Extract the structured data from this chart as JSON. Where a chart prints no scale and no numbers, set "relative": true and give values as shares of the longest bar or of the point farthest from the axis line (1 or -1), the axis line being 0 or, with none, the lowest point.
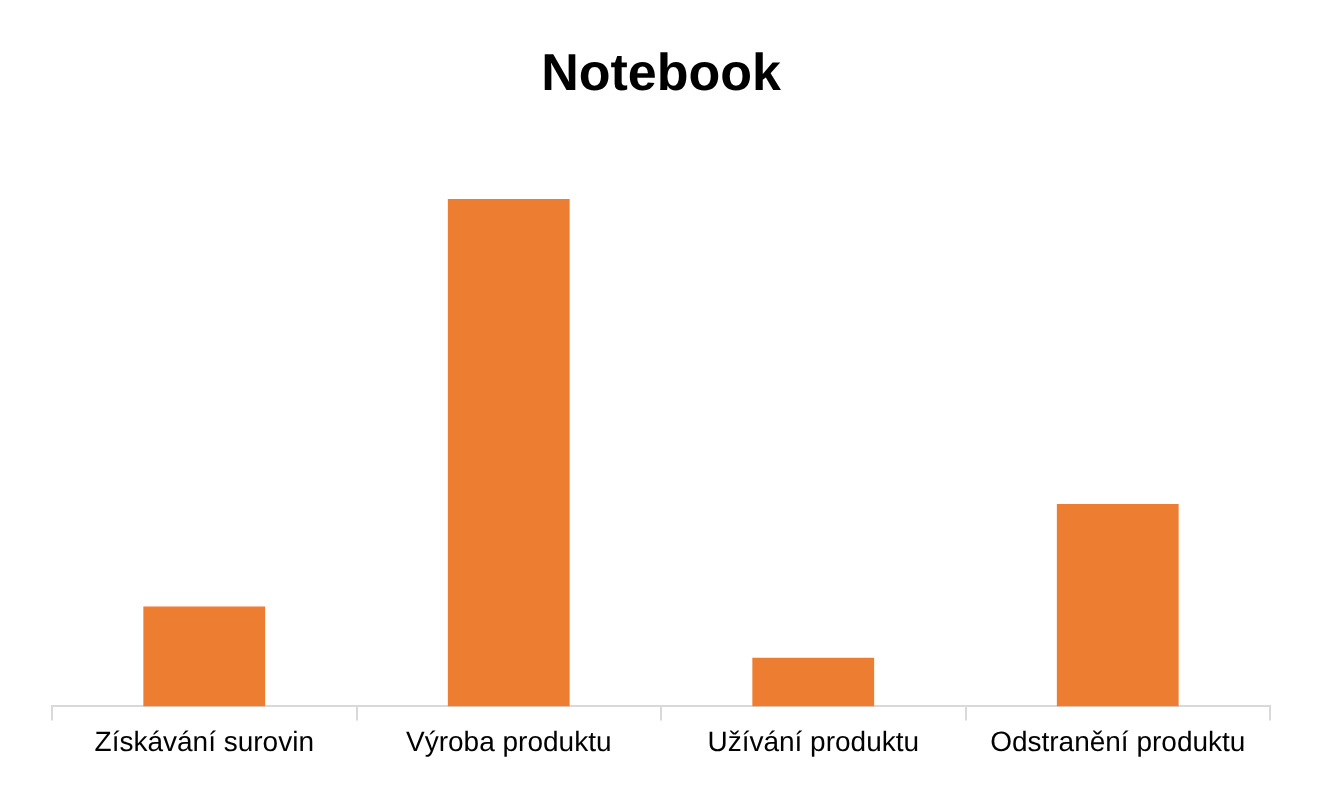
{
  "chart_data": {
    "type": "bar",
    "title": "Notebook",
    "categories": [
      "Získávání surovin",
      "Výroba produktu",
      "Užívání produktu",
      "Odstranění produktu"
    ],
    "values": [
      0.197,
      1,
      0.096,
      0.399
    ],
    "color": "#ed7d31",
    "relative": true
  }
}
